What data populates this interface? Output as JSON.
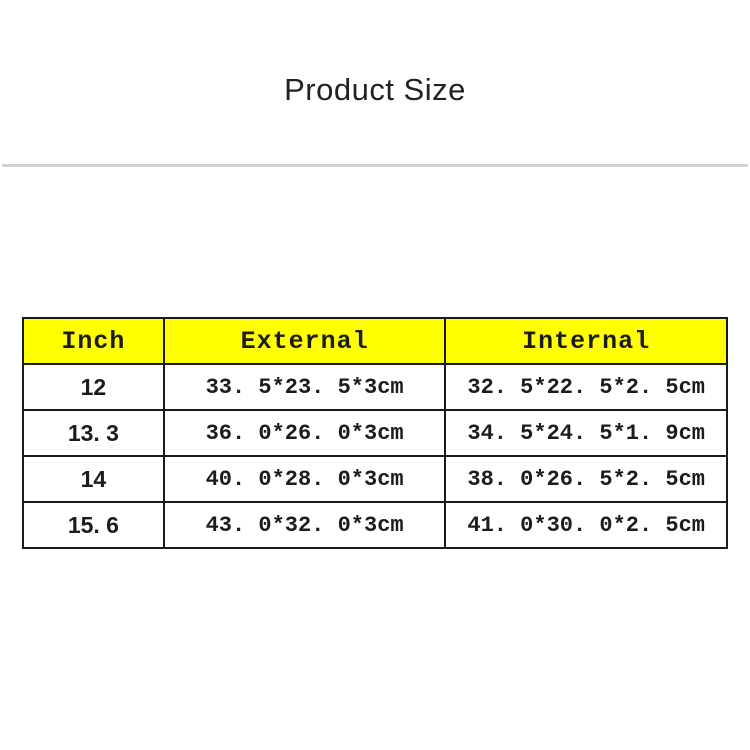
{
  "page": {
    "title": "Product Size"
  },
  "colors": {
    "header_bg": "#ffff00",
    "border": "#1a1a1a",
    "divider": "#d2d2d2"
  },
  "table": {
    "headers": [
      "Inch",
      "External",
      "Internal"
    ],
    "rows": [
      [
        "12",
        "33. 5*23. 5*3cm",
        "32. 5*22. 5*2. 5cm"
      ],
      [
        "13. 3",
        "36. 0*26. 0*3cm",
        "34. 5*24. 5*1. 9cm"
      ],
      [
        "14",
        "40. 0*28. 0*3cm",
        "38. 0*26. 5*2. 5cm"
      ],
      [
        "15. 6",
        "43. 0*32. 0*3cm",
        "41. 0*30. 0*2. 5cm"
      ]
    ]
  }
}
